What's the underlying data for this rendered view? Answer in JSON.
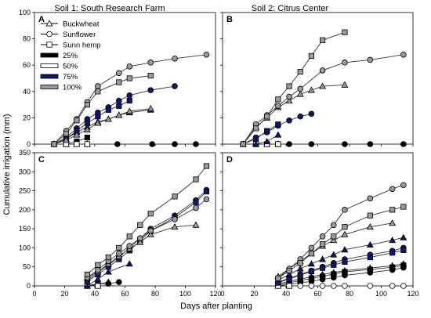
{
  "figure": {
    "col_titles": [
      "Soil 1: South Research Farm",
      "Soil 2: Citrus Center"
    ],
    "ylabel": "Cumulative irrigation (mm)",
    "xlabel": "Days after planting"
  },
  "legend": {
    "species": [
      {
        "label": "Buckwheat",
        "marker": "triangle"
      },
      {
        "label": "Sunflower",
        "marker": "circle"
      },
      {
        "label": "Sunn hemp",
        "marker": "square"
      }
    ],
    "levels": [
      {
        "label": "25%",
        "color": "#000000"
      },
      {
        "label": "50%",
        "color": "#ffffff"
      },
      {
        "label": "75%",
        "color": "#0f1670"
      },
      {
        "label": "100%",
        "color": "#9a9a9a"
      }
    ]
  },
  "styles": {
    "level_colors": {
      "25": "#000000",
      "50": "#ffffff",
      "75": "#0f1670",
      "100": "#9a9a9a"
    },
    "line_color": "#333333"
  },
  "chart_data": [
    {
      "panel": "A",
      "type": "line",
      "xlim": [
        0,
        120
      ],
      "ylim": [
        0,
        100
      ],
      "xticks": [
        0,
        20,
        40,
        60,
        80,
        100,
        120
      ],
      "yticks": [
        0,
        20,
        40,
        60,
        80,
        100
      ],
      "series": [
        {
          "marker": "triangle",
          "level": "25",
          "x": [
            13,
            21,
            28,
            35
          ],
          "y": [
            0,
            0,
            0,
            0
          ]
        },
        {
          "marker": "circle",
          "level": "25",
          "x": [
            35,
            55,
            78,
            93,
            107
          ],
          "y": [
            0,
            0,
            0,
            0,
            0
          ]
        },
        {
          "marker": "square",
          "level": "25",
          "x": [
            21,
            28,
            35
          ],
          "y": [
            0,
            2,
            5
          ]
        },
        {
          "marker": "triangle",
          "level": "50",
          "x": [
            13,
            21,
            28,
            35
          ],
          "y": [
            0,
            0,
            0,
            0
          ]
        },
        {
          "marker": "circle",
          "level": "50",
          "x": [
            13,
            21,
            28,
            35
          ],
          "y": [
            0,
            0,
            0,
            0
          ]
        },
        {
          "marker": "square",
          "level": "50",
          "x": [
            21,
            28,
            35
          ],
          "y": [
            0,
            0,
            0
          ]
        },
        {
          "marker": "triangle",
          "level": "75",
          "x": [
            13,
            21,
            28,
            35,
            42,
            49,
            56,
            63,
            77
          ],
          "y": [
            0,
            4,
            9,
            13,
            17,
            19,
            22,
            24,
            26
          ]
        },
        {
          "marker": "circle",
          "level": "75",
          "x": [
            13,
            21,
            28,
            35,
            42,
            49,
            56,
            63,
            77,
            93
          ],
          "y": [
            0,
            5,
            12,
            19,
            24,
            28,
            33,
            37,
            41,
            44
          ]
        },
        {
          "marker": "square",
          "level": "75",
          "x": [
            13,
            21,
            28,
            35,
            42,
            49,
            56,
            63
          ],
          "y": [
            0,
            4,
            10,
            16,
            21,
            26,
            29,
            33
          ]
        },
        {
          "marker": "triangle",
          "level": "100",
          "x": [
            13,
            21,
            28,
            35,
            42,
            49,
            56,
            63,
            77
          ],
          "y": [
            0,
            3,
            7,
            11,
            16,
            19,
            22,
            25,
            27
          ]
        },
        {
          "marker": "circle",
          "level": "100",
          "x": [
            13,
            21,
            28,
            35,
            42,
            56,
            63,
            77,
            93,
            114
          ],
          "y": [
            0,
            10,
            19,
            32,
            44,
            54,
            59,
            62,
            65,
            68
          ]
        },
        {
          "marker": "square",
          "level": "100",
          "x": [
            13,
            21,
            28,
            35,
            42,
            56,
            63,
            77
          ],
          "y": [
            0,
            8,
            18,
            30,
            40,
            47,
            50,
            52
          ]
        }
      ]
    },
    {
      "panel": "B",
      "type": "line",
      "xlim": [
        0,
        120
      ],
      "ylim": [
        0,
        100
      ],
      "xticks": [
        0,
        20,
        40,
        60,
        80,
        100,
        120
      ],
      "yticks": [
        0,
        20,
        40,
        60,
        80,
        100
      ],
      "series": [
        {
          "marker": "triangle",
          "level": "25",
          "x": [
            13,
            21,
            28,
            35
          ],
          "y": [
            0,
            0,
            0,
            0
          ]
        },
        {
          "marker": "circle",
          "level": "25",
          "x": [
            21,
            35,
            42,
            56,
            77,
            93,
            114
          ],
          "y": [
            0,
            0,
            0,
            0,
            0,
            0,
            0
          ]
        },
        {
          "marker": "square",
          "level": "25",
          "x": [
            21,
            28,
            35
          ],
          "y": [
            0,
            0,
            0
          ]
        },
        {
          "marker": "triangle",
          "level": "50",
          "x": [
            13,
            21,
            28,
            35
          ],
          "y": [
            0,
            0,
            0,
            0
          ]
        },
        {
          "marker": "circle",
          "level": "50",
          "x": [
            13,
            21,
            28,
            35
          ],
          "y": [
            0,
            0,
            0,
            0
          ]
        },
        {
          "marker": "square",
          "level": "50",
          "x": [
            21,
            28,
            35
          ],
          "y": [
            0,
            0,
            0
          ]
        },
        {
          "marker": "triangle",
          "level": "75",
          "x": [
            21,
            28,
            35
          ],
          "y": [
            0,
            2,
            7
          ]
        },
        {
          "marker": "circle",
          "level": "75",
          "x": [
            13,
            21,
            28,
            35,
            42,
            49,
            56
          ],
          "y": [
            0,
            5,
            9,
            14,
            18,
            21,
            23
          ]
        },
        {
          "marker": "square",
          "level": "75",
          "x": [
            13,
            21,
            28,
            35
          ],
          "y": [
            0,
            4,
            10,
            15
          ]
        },
        {
          "marker": "triangle",
          "level": "100",
          "x": [
            13,
            21,
            28,
            35,
            42,
            49,
            56,
            63,
            77
          ],
          "y": [
            0,
            13,
            20,
            28,
            33,
            38,
            41,
            44,
            45
          ]
        },
        {
          "marker": "circle",
          "level": "100",
          "x": [
            13,
            21,
            28,
            35,
            42,
            49,
            63,
            77,
            93,
            114
          ],
          "y": [
            0,
            15,
            22,
            29,
            36,
            42,
            56,
            62,
            64,
            68
          ]
        },
        {
          "marker": "square",
          "level": "100",
          "x": [
            13,
            21,
            28,
            35,
            42,
            49,
            56,
            63,
            77
          ],
          "y": [
            0,
            12,
            21,
            34,
            44,
            55,
            67,
            79,
            85
          ]
        }
      ]
    },
    {
      "panel": "C",
      "type": "line",
      "xlim": [
        0,
        120
      ],
      "ylim": [
        0,
        350
      ],
      "xticks": [
        0,
        20,
        40,
        60,
        80,
        100,
        120
      ],
      "yticks": [
        0,
        50,
        100,
        150,
        200,
        250,
        300,
        350
      ],
      "series": [
        {
          "marker": "triangle",
          "level": "25",
          "x": [
            35,
            42,
            49
          ],
          "y": [
            0,
            5,
            10
          ]
        },
        {
          "marker": "circle",
          "level": "25",
          "x": [
            35,
            42,
            49,
            56
          ],
          "y": [
            2,
            4,
            6,
            10
          ]
        },
        {
          "marker": "square",
          "level": "25",
          "x": [
            35,
            42
          ],
          "y": [
            0,
            3
          ]
        },
        {
          "marker": "triangle",
          "level": "50",
          "x": [
            35,
            42
          ],
          "y": [
            0,
            0
          ]
        },
        {
          "marker": "circle",
          "level": "50",
          "x": [
            35,
            42
          ],
          "y": [
            0,
            0
          ]
        },
        {
          "marker": "square",
          "level": "50",
          "x": [
            35,
            42
          ],
          "y": [
            0,
            0
          ]
        },
        {
          "marker": "triangle",
          "level": "75",
          "x": [
            35,
            42,
            49,
            63
          ],
          "y": [
            0,
            18,
            37,
            58
          ]
        },
        {
          "marker": "circle",
          "level": "75",
          "x": [
            35,
            42,
            49,
            56,
            63,
            70,
            77,
            93,
            107,
            114
          ],
          "y": [
            15,
            35,
            55,
            75,
            100,
            125,
            150,
            185,
            225,
            252
          ]
        },
        {
          "marker": "square",
          "level": "75",
          "x": [
            35,
            42,
            49,
            56,
            63,
            70,
            77,
            93,
            107,
            114
          ],
          "y": [
            12,
            30,
            50,
            70,
            93,
            118,
            145,
            180,
            220,
            248
          ]
        },
        {
          "marker": "triangle",
          "level": "100",
          "x": [
            35,
            42,
            49,
            56,
            63,
            70,
            77,
            93,
            107
          ],
          "y": [
            20,
            38,
            58,
            78,
            98,
            115,
            135,
            155,
            160
          ]
        },
        {
          "marker": "circle",
          "level": "100",
          "x": [
            35,
            42,
            49,
            56,
            63,
            70,
            77,
            93,
            107,
            114
          ],
          "y": [
            22,
            42,
            65,
            85,
            105,
            125,
            145,
            175,
            205,
            228
          ]
        },
        {
          "marker": "square",
          "level": "100",
          "x": [
            35,
            42,
            49,
            56,
            63,
            70,
            77,
            93,
            107,
            114
          ],
          "y": [
            30,
            55,
            75,
            100,
            130,
            160,
            190,
            235,
            280,
            315
          ]
        }
      ]
    },
    {
      "panel": "D",
      "type": "line",
      "xlim": [
        0,
        120
      ],
      "ylim": [
        0,
        350
      ],
      "xticks": [
        0,
        20,
        40,
        60,
        80,
        100,
        120
      ],
      "yticks": [
        0,
        50,
        100,
        150,
        200,
        250,
        300,
        350
      ],
      "series": [
        {
          "marker": "triangle",
          "level": "25",
          "x": [
            35,
            42,
            49,
            56,
            63,
            70,
            77,
            93,
            107,
            114
          ],
          "y": [
            5,
            12,
            18,
            24,
            30,
            35,
            40,
            47,
            53,
            58
          ]
        },
        {
          "marker": "circle",
          "level": "25",
          "x": [
            35,
            42,
            49,
            56,
            63,
            70,
            77,
            93,
            107,
            114
          ],
          "y": [
            0,
            4,
            8,
            12,
            17,
            22,
            28,
            35,
            42,
            48
          ]
        },
        {
          "marker": "square",
          "level": "25",
          "x": [
            35,
            42,
            49,
            56,
            63,
            70,
            77,
            93,
            107,
            114
          ],
          "y": [
            2,
            8,
            14,
            20,
            25,
            31,
            37,
            43,
            49,
            54
          ]
        },
        {
          "marker": "triangle",
          "level": "50",
          "x": [
            35,
            42
          ],
          "y": [
            0,
            0
          ]
        },
        {
          "marker": "circle",
          "level": "50",
          "x": [
            35,
            42,
            49,
            56,
            63,
            70,
            77,
            93,
            107,
            114
          ],
          "y": [
            0,
            0,
            0,
            0,
            0,
            0,
            0,
            0,
            0,
            0
          ]
        },
        {
          "marker": "square",
          "level": "50",
          "x": [
            35,
            42
          ],
          "y": [
            0,
            0
          ]
        },
        {
          "marker": "triangle",
          "level": "75",
          "x": [
            35,
            42,
            49,
            56,
            63,
            70,
            77,
            93,
            107,
            114
          ],
          "y": [
            15,
            30,
            45,
            58,
            70,
            82,
            95,
            108,
            120,
            127
          ]
        },
        {
          "marker": "circle",
          "level": "75",
          "x": [
            35,
            42,
            49,
            56,
            63,
            70,
            77,
            93,
            107,
            114
          ],
          "y": [
            10,
            20,
            30,
            40,
            50,
            60,
            70,
            82,
            92,
            100
          ]
        },
        {
          "marker": "square",
          "level": "75",
          "x": [
            35,
            42,
            49,
            56,
            63,
            70,
            77,
            93,
            107,
            114
          ],
          "y": [
            8,
            18,
            28,
            38,
            47,
            55,
            63,
            75,
            87,
            94
          ]
        },
        {
          "marker": "triangle",
          "level": "100",
          "x": [
            35,
            42,
            49,
            56,
            63,
            70,
            77,
            93,
            107
          ],
          "y": [
            25,
            45,
            65,
            85,
            105,
            120,
            135,
            155,
            165
          ]
        },
        {
          "marker": "circle",
          "level": "100",
          "x": [
            35,
            42,
            49,
            56,
            63,
            70,
            77,
            93,
            107,
            114
          ],
          "y": [
            20,
            45,
            70,
            100,
            130,
            160,
            200,
            230,
            255,
            265
          ]
        },
        {
          "marker": "square",
          "level": "100",
          "x": [
            35,
            42,
            49,
            56,
            63,
            70,
            77,
            93,
            107,
            114
          ],
          "y": [
            20,
            40,
            60,
            85,
            110,
            130,
            155,
            185,
            200,
            208
          ]
        }
      ]
    }
  ]
}
